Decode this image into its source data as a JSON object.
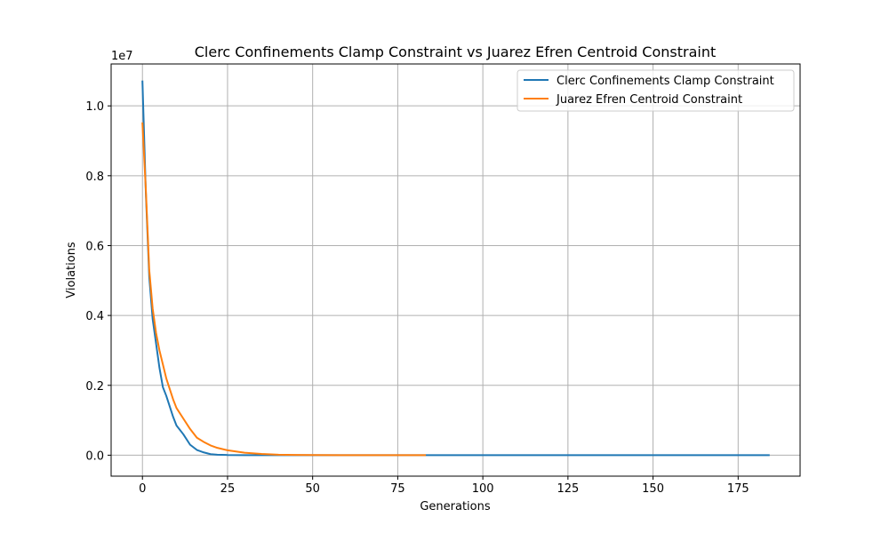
{
  "chart_data": {
    "type": "line",
    "title": "Clerc Confinements Clamp Constraint vs Juarez Efren Centroid Constraint",
    "xlabel": "Generations",
    "ylabel": "Violations",
    "y_offset_label": "1e7",
    "xlim": [
      -9.2,
      193.2
    ],
    "ylim": [
      -600000,
      11200000
    ],
    "xticks": [
      0,
      25,
      50,
      75,
      100,
      125,
      150,
      175
    ],
    "xtick_labels": [
      "0",
      "25",
      "50",
      "75",
      "100",
      "125",
      "150",
      "175"
    ],
    "yticks": [
      0,
      2000000,
      4000000,
      6000000,
      8000000,
      10000000
    ],
    "ytick_labels": [
      "0.0",
      "0.2",
      "0.4",
      "0.6",
      "0.8",
      "1.0"
    ],
    "grid": true,
    "legend_position": "top-right",
    "series": [
      {
        "name": "Clerc Confinements Clamp Constraint",
        "color": "#1f77b4",
        "x": [
          0,
          1,
          2,
          3,
          4,
          5,
          6,
          7,
          8,
          9,
          10,
          12,
          14,
          16,
          18,
          20,
          22,
          25,
          30,
          35,
          40,
          50,
          60,
          80,
          100,
          120,
          150,
          184
        ],
        "y": [
          10700000,
          7500000,
          5100000,
          3900000,
          3200000,
          2500000,
          1950000,
          1700000,
          1400000,
          1100000,
          850000,
          600000,
          300000,
          150000,
          80000,
          30000,
          15000,
          5000,
          1000,
          500,
          200,
          100,
          50,
          20,
          10,
          5,
          2,
          0
        ]
      },
      {
        "name": "Juarez Efren Centroid Constraint",
        "color": "#ff7f0e",
        "x": [
          0,
          1,
          2,
          3,
          4,
          5,
          6,
          7,
          8,
          9,
          10,
          12,
          14,
          16,
          18,
          20,
          22,
          25,
          30,
          35,
          40,
          45,
          50,
          60,
          70,
          83
        ],
        "y": [
          9500000,
          7600000,
          5300000,
          4200000,
          3500000,
          3000000,
          2600000,
          2200000,
          1900000,
          1600000,
          1350000,
          1050000,
          750000,
          500000,
          380000,
          280000,
          210000,
          140000,
          70000,
          35000,
          15000,
          8000,
          4000,
          1500,
          500,
          0
        ]
      }
    ]
  }
}
